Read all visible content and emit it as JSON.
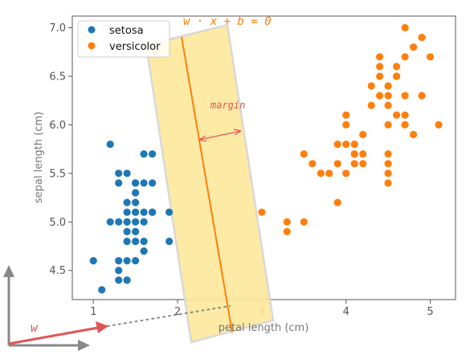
{
  "chart_data": {
    "type": "scatter",
    "xlabel": "petal length (cm)",
    "ylabel": "sepal length (cm)",
    "xlim": [
      0.75,
      5.3
    ],
    "ylim": [
      4.2,
      7.12
    ],
    "xticks": [
      "1",
      "2",
      "3",
      "4",
      "5"
    ],
    "yticks": [
      "4.5",
      "5.0",
      "5.5",
      "6.0",
      "6.5",
      "7.0"
    ],
    "grid": false,
    "legend": "top-left",
    "series": [
      {
        "name": "setosa",
        "color": "#1f77b4",
        "points": [
          [
            1.0,
            4.6
          ],
          [
            1.1,
            4.3
          ],
          [
            1.2,
            5.8
          ],
          [
            1.2,
            5.0
          ],
          [
            1.3,
            5.0
          ],
          [
            1.3,
            5.4
          ],
          [
            1.3,
            5.5
          ],
          [
            1.3,
            4.5
          ],
          [
            1.3,
            4.4
          ],
          [
            1.3,
            4.6
          ],
          [
            1.4,
            5.1
          ],
          [
            1.4,
            4.9
          ],
          [
            1.4,
            4.6
          ],
          [
            1.4,
            5.0
          ],
          [
            1.4,
            4.4
          ],
          [
            1.4,
            4.8
          ],
          [
            1.4,
            5.5
          ],
          [
            1.4,
            5.2
          ],
          [
            1.4,
            5.0
          ],
          [
            1.4,
            4.4
          ],
          [
            1.5,
            5.4
          ],
          [
            1.5,
            4.9
          ],
          [
            1.5,
            5.1
          ],
          [
            1.5,
            5.0
          ],
          [
            1.5,
            5.2
          ],
          [
            1.5,
            4.8
          ],
          [
            1.5,
            5.3
          ],
          [
            1.5,
            5.4
          ],
          [
            1.5,
            4.6
          ],
          [
            1.6,
            5.7
          ],
          [
            1.6,
            5.0
          ],
          [
            1.6,
            4.7
          ],
          [
            1.6,
            5.1
          ],
          [
            1.6,
            4.8
          ],
          [
            1.6,
            5.4
          ],
          [
            1.7,
            5.7
          ],
          [
            1.7,
            5.4
          ],
          [
            1.7,
            5.1
          ],
          [
            1.7,
            5.1
          ],
          [
            1.9,
            5.1
          ],
          [
            1.9,
            4.8
          ]
        ]
      },
      {
        "name": "versicolor",
        "color": "#ff7f0e",
        "points": [
          [
            3.0,
            5.1
          ],
          [
            3.3,
            5.0
          ],
          [
            3.3,
            4.9
          ],
          [
            3.5,
            5.7
          ],
          [
            3.5,
            5.0
          ],
          [
            3.6,
            5.6
          ],
          [
            3.7,
            5.5
          ],
          [
            3.8,
            5.5
          ],
          [
            3.9,
            5.6
          ],
          [
            3.9,
            5.8
          ],
          [
            3.9,
            5.2
          ],
          [
            4.0,
            6.1
          ],
          [
            4.0,
            6.0
          ],
          [
            4.0,
            5.8
          ],
          [
            4.0,
            5.5
          ],
          [
            4.1,
            5.8
          ],
          [
            4.1,
            5.7
          ],
          [
            4.1,
            5.6
          ],
          [
            4.2,
            5.7
          ],
          [
            4.2,
            5.6
          ],
          [
            4.2,
            5.9
          ],
          [
            4.3,
            6.4
          ],
          [
            4.3,
            6.2
          ],
          [
            4.4,
            6.7
          ],
          [
            4.4,
            6.6
          ],
          [
            4.4,
            6.3
          ],
          [
            4.5,
            5.7
          ],
          [
            4.5,
            5.6
          ],
          [
            4.5,
            6.0
          ],
          [
            4.5,
            6.4
          ],
          [
            4.5,
            5.4
          ],
          [
            4.5,
            6.2
          ],
          [
            4.6,
            6.5
          ],
          [
            4.6,
            6.6
          ],
          [
            4.6,
            6.1
          ],
          [
            4.7,
            7.0
          ],
          [
            4.7,
            6.1
          ],
          [
            4.7,
            6.7
          ],
          [
            4.7,
            6.3
          ],
          [
            4.7,
            6.0
          ],
          [
            4.8,
            6.8
          ],
          [
            4.8,
            5.9
          ],
          [
            4.9,
            6.9
          ],
          [
            4.9,
            6.3
          ],
          [
            5.0,
            6.7
          ],
          [
            5.1,
            6.0
          ],
          [
            4.4,
            6.5
          ],
          [
            4.5,
            6.3
          ],
          [
            4.5,
            5.5
          ],
          [
            4.6,
            6.5
          ]
        ]
      }
    ],
    "annotations": {
      "hyperplane_label": "w · x + b = 0",
      "margin_label": "margin",
      "vector_label": "w"
    },
    "colors": {
      "margin_band": "#fde89a",
      "hyperplane": "#ff7f0e",
      "margin_arrow": "#e45756",
      "weight_vector": "#e05555",
      "basis_axes": "#888888"
    }
  }
}
